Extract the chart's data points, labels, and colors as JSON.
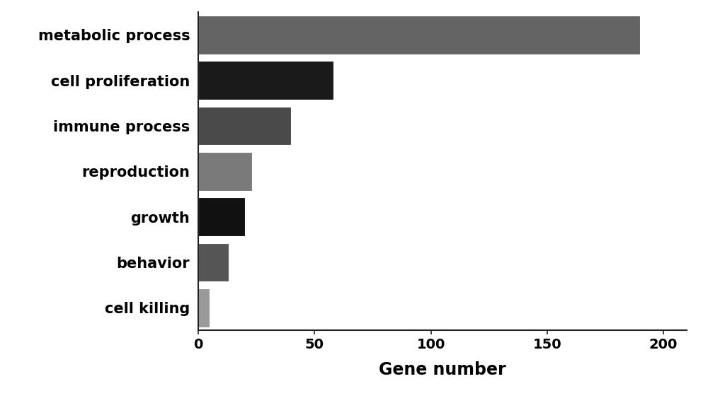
{
  "categories": [
    "metabolic process",
    "cell proliferation",
    "immune process",
    "reproduction",
    "growth",
    "behavior",
    "cell killing"
  ],
  "values": [
    190,
    58,
    40,
    23,
    20,
    13,
    5
  ],
  "bar_colors": [
    "#646464",
    "#1a1a1a",
    "#4a4a4a",
    "#7a7a7a",
    "#111111",
    "#555555",
    "#999999"
  ],
  "xlabel": "Gene number",
  "xlim": [
    0,
    210
  ],
  "xticks": [
    0,
    50,
    100,
    150,
    200
  ],
  "xlabel_fontsize": 17,
  "tick_fontsize": 14,
  "label_fontsize": 15,
  "bar_height": 0.85,
  "background_color": "#ffffff",
  "figsize": [
    10.0,
    5.7
  ],
  "dpi": 100
}
